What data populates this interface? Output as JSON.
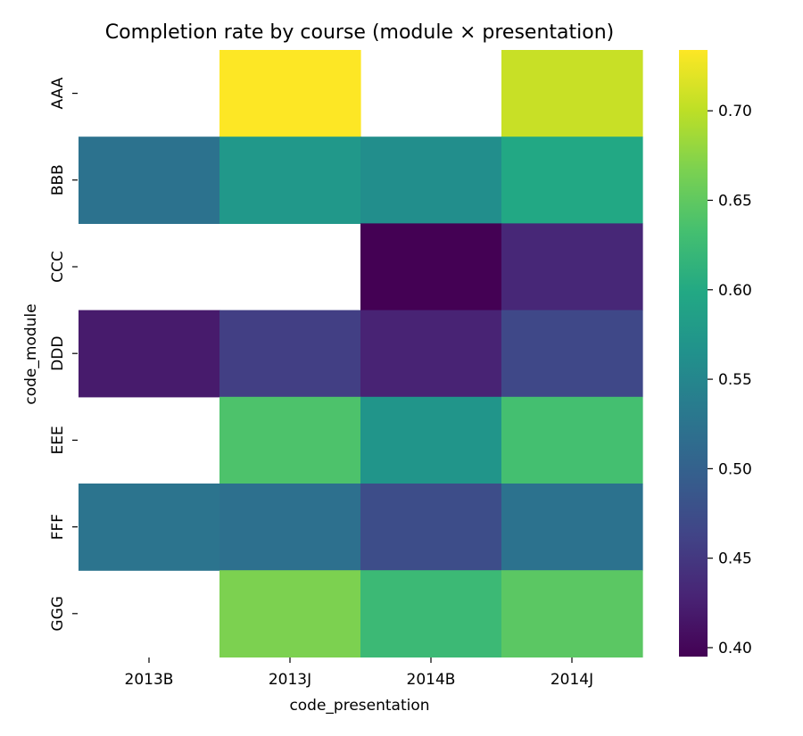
{
  "chart_data": {
    "type": "heatmap",
    "title": "Completion rate by course (module × presentation)",
    "xlabel": "code_presentation",
    "ylabel": "code_module",
    "x_categories": [
      "2013B",
      "2013J",
      "2014B",
      "2014J"
    ],
    "y_categories": [
      "AAA",
      "BBB",
      "CCC",
      "DDD",
      "EEE",
      "FFF",
      "GGG"
    ],
    "values": [
      [
        null,
        0.734,
        null,
        0.706
      ],
      [
        0.523,
        0.575,
        0.561,
        0.598
      ],
      [
        null,
        null,
        0.395,
        0.432
      ],
      [
        0.42,
        0.458,
        0.428,
        0.468
      ],
      [
        null,
        0.638,
        0.571,
        0.632
      ],
      [
        0.525,
        0.52,
        0.474,
        0.523
      ],
      [
        null,
        0.667,
        0.624,
        0.647
      ]
    ],
    "colorbar": {
      "colormap": "viridis",
      "min": 0.395,
      "max": 0.734,
      "ticks": [
        "0.40",
        "0.45",
        "0.50",
        "0.55",
        "0.60",
        "0.65",
        "0.70"
      ]
    },
    "missing_cells": "blank"
  }
}
